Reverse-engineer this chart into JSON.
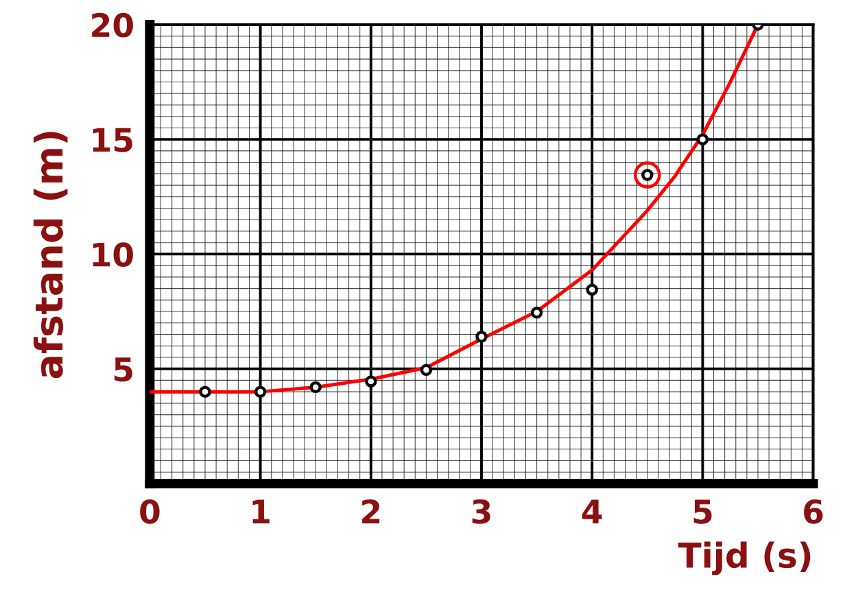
{
  "chart_data": {
    "type": "scatter",
    "xlabel": "Tijd (s)",
    "ylabel": "afstand (m)",
    "xlim": [
      0,
      6
    ],
    "ylim": [
      0,
      20
    ],
    "xticks": [
      0,
      1,
      2,
      3,
      4,
      5,
      6
    ],
    "yticks": [
      5,
      10,
      15,
      20
    ],
    "grid": true,
    "legend": false,
    "series": [
      {
        "type": "line",
        "color": "#ff0000",
        "marker": "none",
        "line_style": "solid",
        "x": [
          0,
          0.5,
          1,
          1.5,
          2,
          2.5,
          3,
          3.5,
          4,
          4.5,
          4.75,
          5,
          5.25,
          5.5
        ],
        "values": [
          4.0,
          4.0,
          4.0,
          4.2,
          4.55,
          5.05,
          6.3,
          7.5,
          9.3,
          11.9,
          13.4,
          15.2,
          17.5,
          20
        ]
      },
      {
        "color": "#000000",
        "marker": "circle",
        "x": [
          0.5,
          1,
          1.5,
          2,
          2.5,
          3,
          3.5,
          4,
          4.5,
          5,
          5.5
        ],
        "values": [
          4.0,
          4.0,
          4.2,
          4.45,
          4.95,
          6.4,
          7.45,
          8.45,
          13.45,
          15,
          20
        ]
      },
      {
        "color": "#ff0000",
        "marker": "circle",
        "x": [
          4.5
        ],
        "values": [
          13.45
        ]
      }
    ]
  }
}
